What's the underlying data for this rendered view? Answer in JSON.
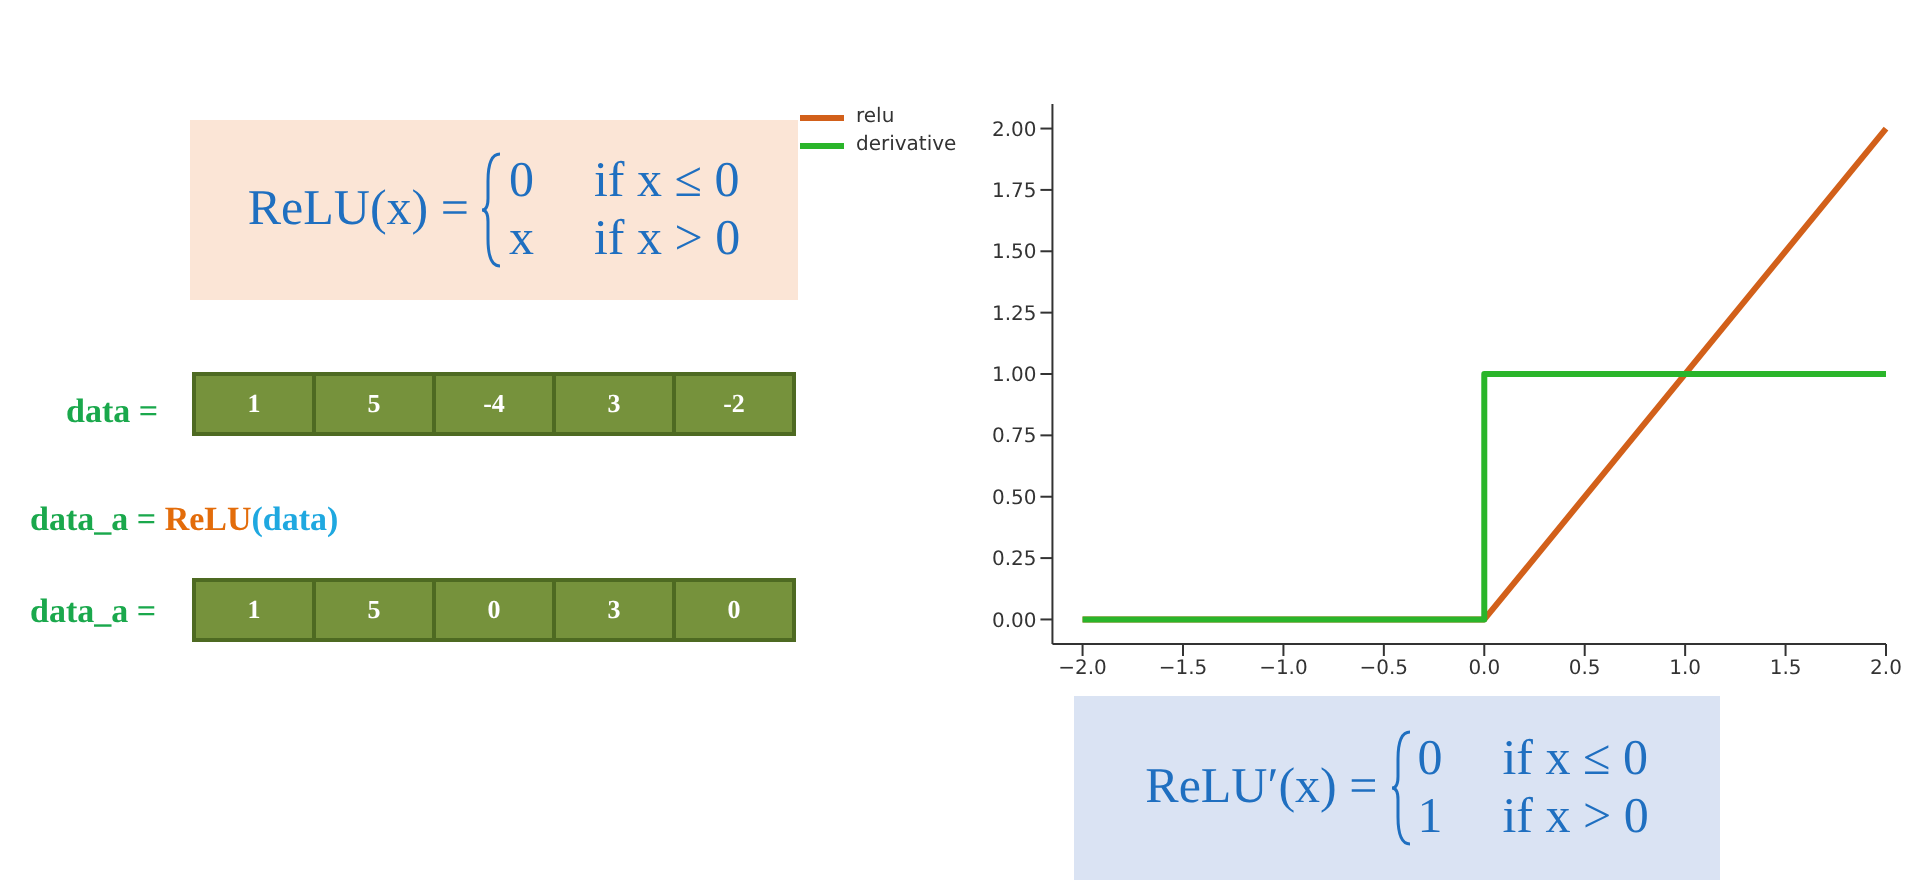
{
  "chart_data": {
    "type": "line",
    "xlim": [
      -2.15,
      2.0
    ],
    "xticks": [
      {
        "value": -2,
        "label": "−2.0"
      },
      {
        "value": -1.5,
        "label": "−1.5"
      },
      {
        "value": -1,
        "label": "−1.0"
      },
      {
        "value": -0.5,
        "label": "−0.5"
      },
      {
        "value": 0,
        "label": "0.0"
      },
      {
        "value": 0.5,
        "label": "0.5"
      },
      {
        "value": 1,
        "label": "1.0"
      },
      {
        "value": 1.5,
        "label": "1.5"
      },
      {
        "value": 2,
        "label": "2.0"
      }
    ],
    "ylim": [
      -0.1,
      2.1
    ],
    "yticks": [
      {
        "value": 0,
        "label": "0.00"
      },
      {
        "value": 0.25,
        "label": "0.25"
      },
      {
        "value": 0.5,
        "label": "0.50"
      },
      {
        "value": 0.75,
        "label": "0.75"
      },
      {
        "value": 1,
        "label": "1.00"
      },
      {
        "value": 1.25,
        "label": "1.25"
      },
      {
        "value": 1.5,
        "label": "1.50"
      },
      {
        "value": 1.75,
        "label": "1.75"
      },
      {
        "value": 2,
        "label": "2.00"
      }
    ],
    "series": [
      {
        "name": "relu",
        "color": "#d2601a",
        "x": [
          -2,
          0,
          2
        ],
        "values": [
          0,
          0,
          2
        ]
      },
      {
        "name": "derivative",
        "type": "step",
        "color": "#2ab52a",
        "x": [
          -2,
          0,
          2
        ],
        "values": [
          0,
          1,
          1
        ]
      }
    ],
    "legend": "top left",
    "grid": false,
    "marker": "none",
    "line_style": "solid",
    "annotations": [
      "ReLU(x) =",
      "0",
      "if x ≤ 0",
      "x",
      "if x > 0",
      "data =",
      "1",
      "5",
      "-4",
      "3",
      "-2",
      "data_a =",
      "ReLU",
      "(data)",
      "data_a =",
      "1",
      "5",
      "0",
      "3",
      "0",
      "ReLU′(x) =",
      "0",
      "if x ≤ 0",
      "1",
      "if x > 0"
    ]
  }
}
